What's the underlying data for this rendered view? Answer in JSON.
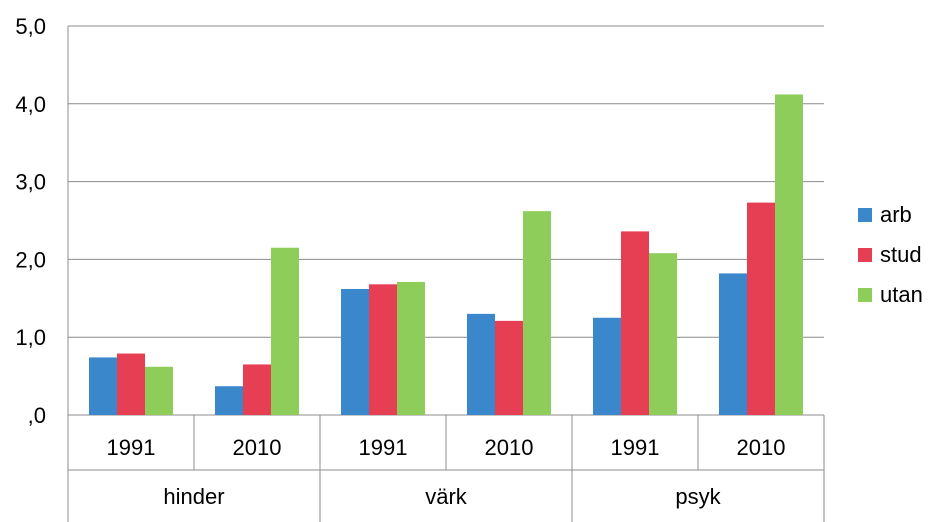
{
  "chart_data": {
    "type": "bar",
    "groups": [
      "hinder",
      "värk",
      "psyk"
    ],
    "categories": [
      "1991",
      "2010",
      "1991",
      "2010",
      "1991",
      "2010"
    ],
    "series": [
      {
        "name": "arb",
        "color": "#3a87cc",
        "values": [
          0.74,
          0.37,
          1.62,
          1.3,
          1.25,
          1.82
        ]
      },
      {
        "name": "stud",
        "color": "#e63f53",
        "values": [
          0.79,
          0.65,
          1.68,
          1.21,
          2.36,
          2.73
        ]
      },
      {
        "name": "utan",
        "color": "#8fcd5b",
        "values": [
          0.62,
          2.15,
          1.71,
          2.62,
          2.08,
          4.12
        ]
      }
    ],
    "yticks": [
      ",0",
      "1,0",
      "2,0",
      "3,0",
      "4,0",
      "5,0"
    ],
    "ylim": [
      0,
      5
    ],
    "grid": true,
    "legend_position": "right",
    "title": "",
    "xlabel": "",
    "ylabel": ""
  }
}
